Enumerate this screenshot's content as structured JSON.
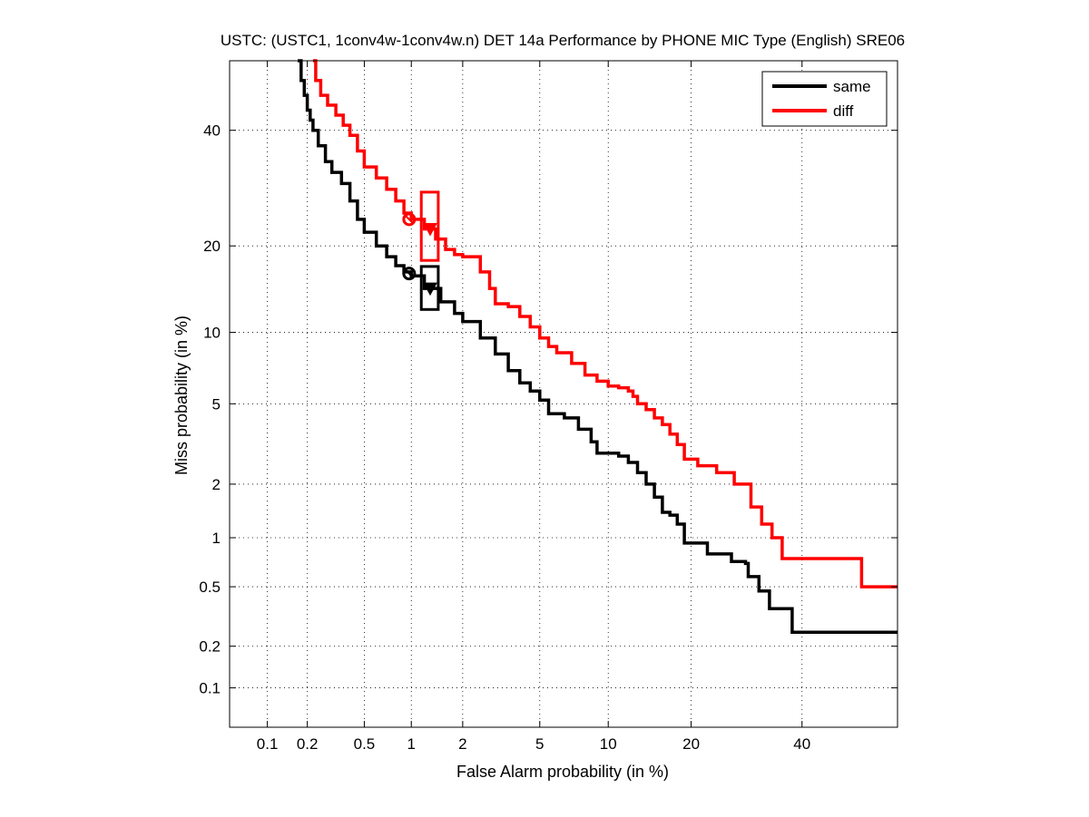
{
  "chart_data": {
    "type": "line",
    "title": "USTC: (USTC1, 1conv4w-1conv4w.n) DET 14a Performance by PHONE MIC Type (English) SRE06",
    "xlabel": "False Alarm probability (in %)",
    "ylabel": "Miss probability (in %)",
    "axis_scale": "normal-deviate (probit)",
    "xlim": [
      0.05,
      60
    ],
    "ylim": [
      0.05,
      54
    ],
    "x_ticks": [
      0.1,
      0.2,
      0.5,
      1,
      2,
      5,
      10,
      20,
      40
    ],
    "x_tick_labels": [
      "0.1",
      "0.2",
      "0.5",
      "1",
      "2",
      "5",
      "10",
      "20",
      "40"
    ],
    "y_ticks": [
      0.1,
      0.2,
      0.5,
      1,
      2,
      5,
      10,
      20,
      40
    ],
    "y_tick_labels": [
      "0.1",
      "0.2",
      "0.5",
      "1",
      "2",
      "5",
      "10",
      "20",
      "40"
    ],
    "grid": true,
    "legend_position": "top-right",
    "series": [
      {
        "name": "same",
        "color": "#000000",
        "points": [
          [
            0.17,
            54
          ],
          [
            0.18,
            50
          ],
          [
            0.19,
            47
          ],
          [
            0.2,
            44
          ],
          [
            0.21,
            42
          ],
          [
            0.22,
            40
          ],
          [
            0.24,
            37
          ],
          [
            0.27,
            34
          ],
          [
            0.3,
            32
          ],
          [
            0.35,
            30
          ],
          [
            0.4,
            27
          ],
          [
            0.45,
            24
          ],
          [
            0.5,
            22
          ],
          [
            0.6,
            20
          ],
          [
            0.7,
            18.5
          ],
          [
            0.8,
            17.3
          ],
          [
            0.9,
            16.5
          ],
          [
            1.0,
            16.0
          ],
          [
            1.2,
            14.5
          ],
          [
            1.5,
            13.0
          ],
          [
            1.8,
            11.8
          ],
          [
            2.0,
            11.0
          ],
          [
            2.5,
            9.5
          ],
          [
            3.0,
            8.2
          ],
          [
            3.5,
            7.0
          ],
          [
            4.0,
            6.2
          ],
          [
            4.5,
            5.7
          ],
          [
            5.0,
            5.2
          ],
          [
            5.5,
            4.5
          ],
          [
            6.5,
            4.3
          ],
          [
            7.5,
            3.8
          ],
          [
            8.5,
            3.3
          ],
          [
            9.0,
            2.9
          ],
          [
            10.0,
            2.9
          ],
          [
            11.0,
            2.8
          ],
          [
            12.0,
            2.6
          ],
          [
            13.0,
            2.3
          ],
          [
            14.0,
            2.0
          ],
          [
            15.0,
            1.7
          ],
          [
            16.0,
            1.4
          ],
          [
            17.0,
            1.35
          ],
          [
            18.0,
            1.2
          ],
          [
            19.0,
            0.93
          ],
          [
            22.0,
            0.93
          ],
          [
            22.5,
            0.8
          ],
          [
            26.0,
            0.8
          ],
          [
            26.5,
            0.72
          ],
          [
            29.0,
            0.7
          ],
          [
            29.5,
            0.58
          ],
          [
            31.0,
            0.58
          ],
          [
            31.5,
            0.47
          ],
          [
            33.0,
            0.47
          ],
          [
            33.5,
            0.36
          ],
          [
            37.0,
            0.36
          ],
          [
            38.0,
            0.25
          ],
          [
            60.0,
            0.25
          ]
        ],
        "actual_dcf_point": [
          1.3,
          14.5
        ],
        "min_dcf_point": [
          0.97,
          16.3
        ],
        "confidence_box": {
          "x": [
            1.15,
            1.45
          ],
          "y": [
            12.2,
            17.2
          ]
        }
      },
      {
        "name": "diff",
        "color": "#ff0000",
        "points": [
          [
            0.22,
            54
          ],
          [
            0.23,
            50
          ],
          [
            0.25,
            47
          ],
          [
            0.28,
            45
          ],
          [
            0.32,
            43
          ],
          [
            0.36,
            41
          ],
          [
            0.4,
            39
          ],
          [
            0.45,
            36
          ],
          [
            0.5,
            33
          ],
          [
            0.6,
            31
          ],
          [
            0.7,
            29
          ],
          [
            0.8,
            27
          ],
          [
            0.9,
            25
          ],
          [
            1.0,
            24
          ],
          [
            1.2,
            22.5
          ],
          [
            1.4,
            21
          ],
          [
            1.6,
            19.5
          ],
          [
            1.8,
            18.8
          ],
          [
            2.0,
            18.5
          ],
          [
            2.5,
            16.5
          ],
          [
            2.8,
            14.5
          ],
          [
            3.0,
            12.8
          ],
          [
            3.5,
            12.5
          ],
          [
            4.0,
            11.5
          ],
          [
            4.5,
            10.5
          ],
          [
            5.0,
            9.5
          ],
          [
            5.5,
            8.8
          ],
          [
            6.0,
            8.3
          ],
          [
            7.0,
            7.5
          ],
          [
            8.0,
            6.7
          ],
          [
            9.0,
            6.3
          ],
          [
            10.0,
            6.0
          ],
          [
            11.0,
            5.9
          ],
          [
            12.0,
            5.7
          ],
          [
            12.5,
            5.4
          ],
          [
            13.0,
            5.0
          ],
          [
            14.0,
            4.7
          ],
          [
            15.0,
            4.3
          ],
          [
            16.0,
            4.0
          ],
          [
            17.0,
            3.6
          ],
          [
            18.0,
            3.2
          ],
          [
            19.0,
            2.7
          ],
          [
            20.0,
            2.7
          ],
          [
            21.0,
            2.5
          ],
          [
            23.0,
            2.5
          ],
          [
            24.0,
            2.3
          ],
          [
            26.0,
            2.3
          ],
          [
            27.0,
            2.0
          ],
          [
            29.0,
            2.0
          ],
          [
            30.0,
            1.5
          ],
          [
            32.0,
            1.2
          ],
          [
            34.0,
            1.0
          ],
          [
            36.0,
            0.75
          ],
          [
            38.0,
            0.75
          ],
          [
            52.0,
            0.75
          ],
          [
            52.5,
            0.5
          ],
          [
            60.0,
            0.5
          ]
        ],
        "actual_dcf_point": [
          1.3,
          22.5
        ],
        "min_dcf_point": [
          0.97,
          24.0
        ],
        "confidence_box": {
          "x": [
            1.15,
            1.45
          ],
          "y": [
            18.0,
            28.5
          ]
        }
      }
    ]
  }
}
